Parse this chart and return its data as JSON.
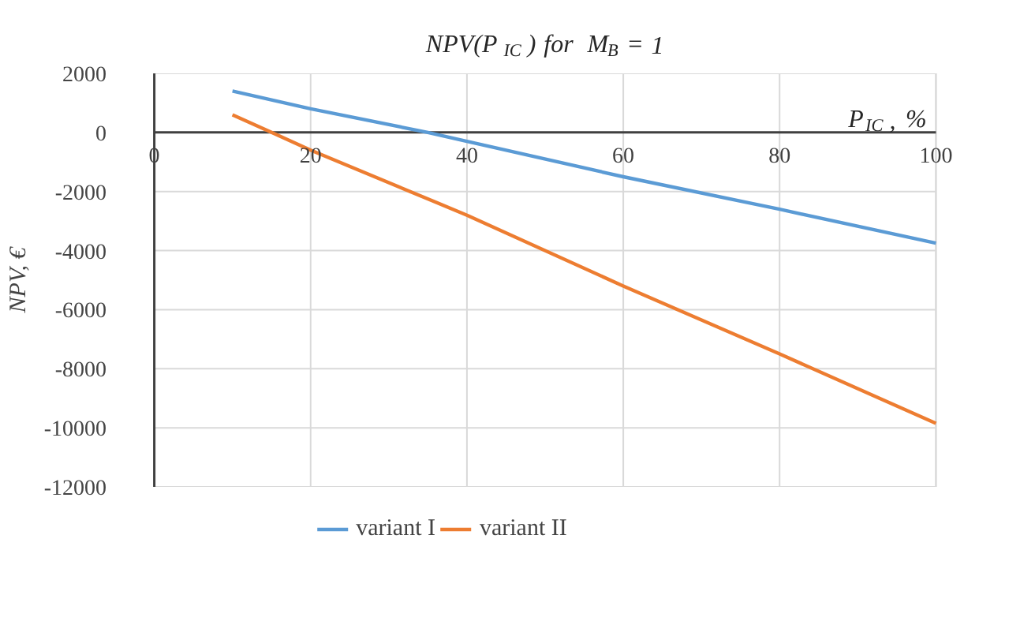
{
  "chart_data": {
    "type": "line",
    "title": "NPV(P$_{IC}$) for M$_{B}$ = 1",
    "xlabel": "P$_{IC}$, %",
    "ylabel": "NPV, €",
    "xlim": [
      0,
      100
    ],
    "xticks": [
      0,
      20,
      40,
      60,
      80,
      100
    ],
    "ylim": [
      -12000,
      2000
    ],
    "yticks": [
      -12000,
      -10000,
      -8000,
      -6000,
      -4000,
      -2000,
      0,
      2000
    ],
    "grid": true,
    "legend": "bottom",
    "marker": "none",
    "line_style": "solid",
    "series": [
      {
        "name": "variant I",
        "color": "#5b9bd5",
        "x": [
          10,
          20,
          35,
          40,
          60,
          80,
          100
        ],
        "values": [
          1400,
          800,
          0,
          -300,
          -1500,
          -2600,
          -3750
        ]
      },
      {
        "name": "variant II",
        "color": "#ed7d31",
        "x": [
          10,
          15,
          20,
          40,
          60,
          80,
          100
        ],
        "values": [
          600,
          0,
          -600,
          -2800,
          -5200,
          -7500,
          -9850
        ]
      }
    ]
  }
}
